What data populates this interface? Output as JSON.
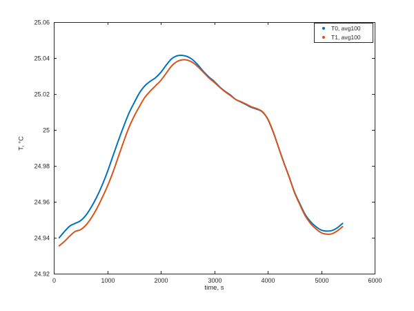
{
  "figure": {
    "background": "#ffffff",
    "axes_color": "#262626"
  },
  "chart_data": {
    "type": "line",
    "title": "",
    "xlabel": "time, s",
    "ylabel": "T, °C",
    "xlim": [
      0,
      6000
    ],
    "ylim": [
      24.92,
      25.06
    ],
    "grid": false,
    "box": true,
    "legend_position": "top-right",
    "x_ticks": [
      {
        "value": 0,
        "label": "0"
      },
      {
        "value": 1000,
        "label": "1000"
      },
      {
        "value": 2000,
        "label": "2000"
      },
      {
        "value": 3000,
        "label": "3000"
      },
      {
        "value": 4000,
        "label": "4000"
      },
      {
        "value": 5000,
        "label": "5000"
      },
      {
        "value": 6000,
        "label": "6000"
      }
    ],
    "y_ticks": [
      {
        "value": 24.92,
        "label": "24.92"
      },
      {
        "value": 24.94,
        "label": "24.94"
      },
      {
        "value": 24.96,
        "label": "24.96"
      },
      {
        "value": 24.98,
        "label": "24.98"
      },
      {
        "value": 25.0,
        "label": "25"
      },
      {
        "value": 25.02,
        "label": "25.02"
      },
      {
        "value": 25.04,
        "label": "25.04"
      },
      {
        "value": 25.06,
        "label": "25.06"
      }
    ],
    "x": [
      100,
      200,
      300,
      400,
      500,
      600,
      700,
      800,
      900,
      1000,
      1100,
      1200,
      1300,
      1400,
      1500,
      1600,
      1700,
      1800,
      1900,
      2000,
      2100,
      2200,
      2300,
      2400,
      2500,
      2600,
      2700,
      2800,
      2900,
      3000,
      3100,
      3200,
      3300,
      3400,
      3500,
      3600,
      3700,
      3800,
      3900,
      4000,
      4100,
      4200,
      4300,
      4400,
      4500,
      4600,
      4700,
      4800,
      4900,
      5000,
      5100,
      5200,
      5300,
      5400
    ],
    "series": [
      {
        "name": "T0, avg100",
        "color": "#0072BD",
        "values": [
          24.94,
          24.9435,
          24.9465,
          24.948,
          24.9495,
          24.9525,
          24.957,
          24.9625,
          24.969,
          24.9765,
          24.985,
          24.9935,
          25.0015,
          25.009,
          25.015,
          25.0205,
          25.0245,
          25.027,
          25.029,
          25.032,
          25.036,
          25.0395,
          25.0412,
          25.0415,
          25.0408,
          25.039,
          25.036,
          25.0325,
          25.0295,
          25.027,
          25.024,
          25.0215,
          25.0195,
          25.017,
          25.0155,
          25.014,
          25.0125,
          25.0115,
          25.01,
          25.006,
          24.999,
          24.9905,
          24.982,
          24.974,
          24.9655,
          24.959,
          24.953,
          24.949,
          24.9462,
          24.9443,
          24.9437,
          24.944,
          24.9455,
          24.948
        ]
      },
      {
        "name": "T1, avg100",
        "color": "#D95319",
        "values": [
          24.9355,
          24.938,
          24.941,
          24.9435,
          24.9445,
          24.947,
          24.951,
          24.956,
          24.962,
          24.9685,
          24.976,
          24.9845,
          24.993,
          25.001,
          25.0075,
          25.013,
          25.018,
          25.0215,
          25.0245,
          25.0275,
          25.0315,
          25.0355,
          25.038,
          25.039,
          25.0388,
          25.0375,
          25.035,
          25.032,
          25.029,
          25.0265,
          25.0238,
          25.0213,
          25.0192,
          25.017,
          25.0157,
          25.0143,
          25.0128,
          25.0118,
          25.0102,
          25.0062,
          24.9992,
          24.9905,
          24.9818,
          24.9738,
          24.9652,
          24.9585,
          24.9523,
          24.948,
          24.945,
          24.9428,
          24.942,
          24.9422,
          24.9438,
          24.9462
        ]
      }
    ]
  },
  "legend": {
    "entries": [
      {
        "label": "T0, avg100",
        "color": "#0072BD",
        "marker": "dot-icon"
      },
      {
        "label": "T1, avg100",
        "color": "#D95319",
        "marker": "dot-icon"
      }
    ]
  }
}
